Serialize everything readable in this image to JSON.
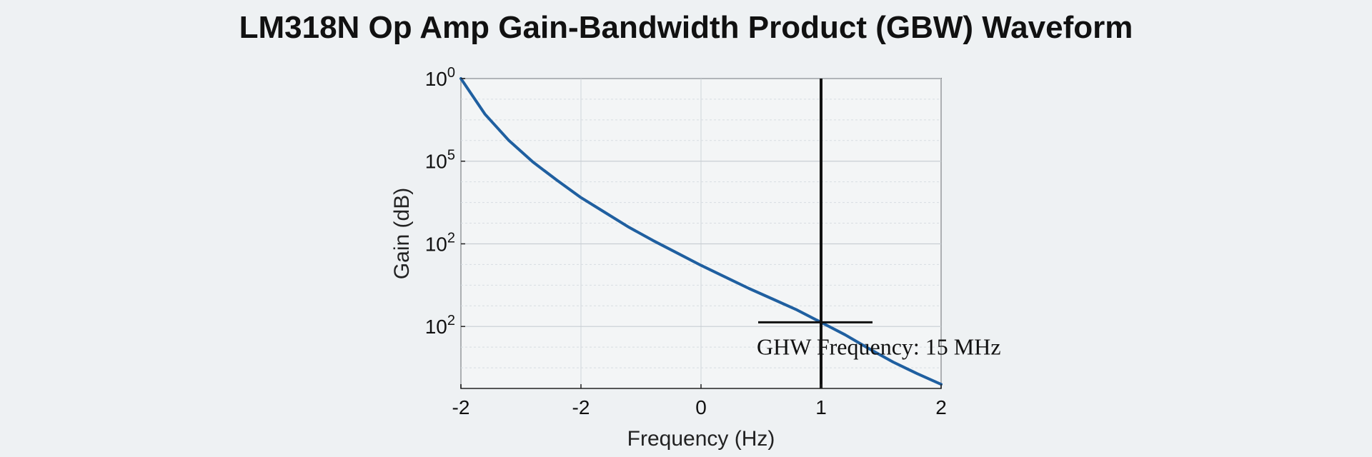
{
  "chart_data": {
    "type": "line",
    "title": "LM318N Op Amp Gain-Bandwidth Product (GBW) Waveform",
    "xlabel": "Frequency (Hz)",
    "ylabel": "Gain (dB)",
    "x_tick_labels": [
      "-2",
      "-2",
      "0",
      "1",
      "2"
    ],
    "y_tick_labels": [
      {
        "base": "10",
        "exp": "0"
      },
      {
        "base": "10",
        "exp": "5"
      },
      {
        "base": "10",
        "exp": "2"
      },
      {
        "base": "10",
        "exp": "2"
      }
    ],
    "xlim": [
      -3,
      1
    ],
    "ylim": [
      -0.75,
      3
    ],
    "grid": true,
    "series_color": "#1f5fa0",
    "series": [
      {
        "x": [
          -3,
          -2.8,
          -2.6,
          -2.4,
          -2.2,
          -2.0,
          -1.8,
          -1.6,
          -1.4,
          -1.2,
          -1.0,
          -0.8,
          -0.6,
          -0.4,
          -0.2,
          0,
          0.2,
          0.4,
          0.6,
          0.8,
          1.0
        ],
        "y": [
          3.0,
          2.57,
          2.25,
          1.99,
          1.77,
          1.56,
          1.38,
          1.2,
          1.04,
          0.89,
          0.74,
          0.6,
          0.46,
          0.33,
          0.2,
          0.05,
          -0.1,
          -0.27,
          -0.43,
          -0.57,
          -0.7
        ]
      }
    ],
    "marker": {
      "x": 0,
      "y": 0.05
    },
    "annotation": "GHW Frequency: 15 MHz"
  }
}
